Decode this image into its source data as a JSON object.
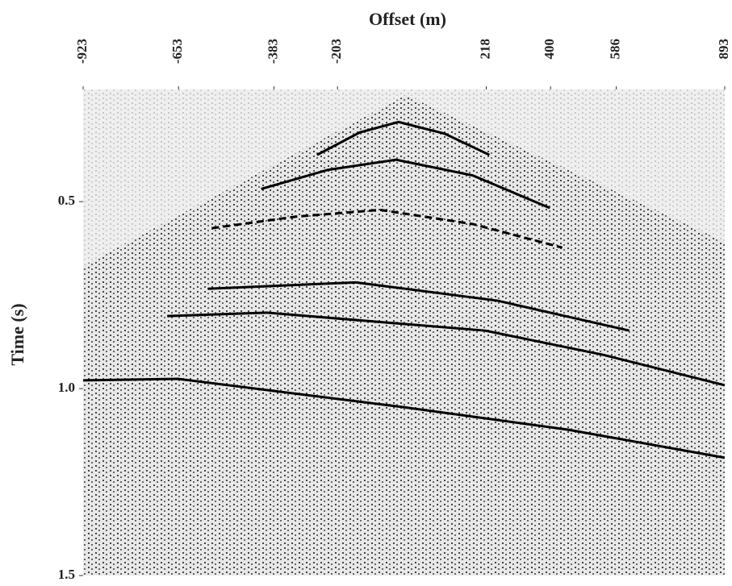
{
  "chart_data": {
    "type": "seismic",
    "xlabel": "Offset (m)",
    "ylabel": "Time (s)",
    "xlim": [
      -923,
      893
    ],
    "xticks": [
      -923,
      -653,
      -383,
      -203,
      218,
      400,
      586,
      893
    ],
    "ylim": [
      0.2,
      1.5
    ],
    "yticks": [
      0.5,
      {
        "value": 1.0,
        "label": "1.0"
      },
      1.5
    ],
    "y_inverted": true,
    "series": [
      {
        "color": "#000000",
        "style": "solid",
        "x": [
          -261,
          -140,
          -30,
          100,
          227
        ],
        "values": [
          0.375,
          0.315,
          0.287,
          0.318,
          0.375
        ]
      },
      {
        "color": "#000000",
        "style": "solid",
        "x": [
          -419,
          -230,
          -37,
          180,
          398
        ],
        "values": [
          0.466,
          0.415,
          0.388,
          0.43,
          0.517
        ]
      },
      {
        "color": "#000000",
        "style": "dashed",
        "x": [
          -559,
          -320,
          -83,
          180,
          433
        ],
        "values": [
          0.571,
          0.54,
          0.522,
          0.56,
          0.623
        ]
      },
      {
        "color": "#000000",
        "style": "solid",
        "x": [
          -570,
          -151,
          250,
          623
        ],
        "values": [
          0.733,
          0.716,
          0.765,
          0.845
        ]
      },
      {
        "color": "#000000",
        "style": "solid",
        "x": [
          -685,
          -403,
          215,
          550,
          893
        ],
        "values": [
          0.806,
          0.797,
          0.845,
          0.91,
          0.991
        ]
      },
      {
        "color": "#000000",
        "style": "solid",
        "x": [
          -923,
          -655,
          -14,
          450,
          893
        ],
        "values": [
          0.978,
          0.974,
          1.05,
          1.11,
          1.185
        ]
      }
    ]
  }
}
